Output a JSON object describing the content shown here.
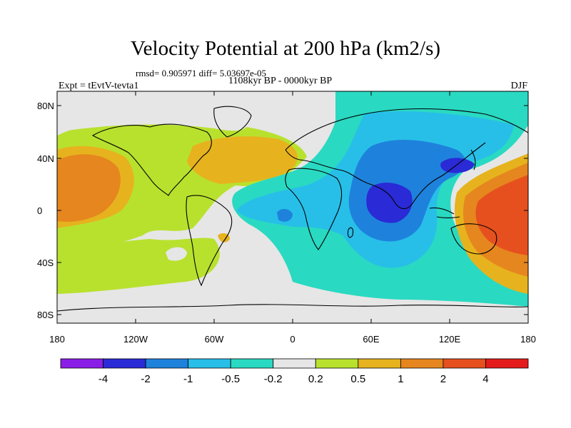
{
  "map": {
    "title": "Velocity Potential at 200 hPa (km2/s)",
    "stats": "rmsd= 0.905971 diff= 5.03697e-05",
    "period": "1108kyr BP - 0000kyr BP",
    "experiment": "Expt = tEvtV-tevta1",
    "season": "DJF",
    "lon_ticks": [
      "180",
      "120W",
      "60W",
      "0",
      "60E",
      "120E",
      "180"
    ],
    "lat_ticks": [
      "80N",
      "40N",
      "0",
      "40S",
      "80S"
    ]
  },
  "colorbar": {
    "colors": [
      "#8b1ee6",
      "#2a2ad6",
      "#1e82dc",
      "#27bfe8",
      "#2ad9c2",
      "#e6e6e6",
      "#b8e12e",
      "#e6b31e",
      "#e6861e",
      "#e6501e",
      "#e31b1b"
    ],
    "labels": [
      "-4",
      "-2",
      "-1",
      "-0.5",
      "-0.2",
      "0.2",
      "0.5",
      "1",
      "2",
      "4"
    ]
  }
}
